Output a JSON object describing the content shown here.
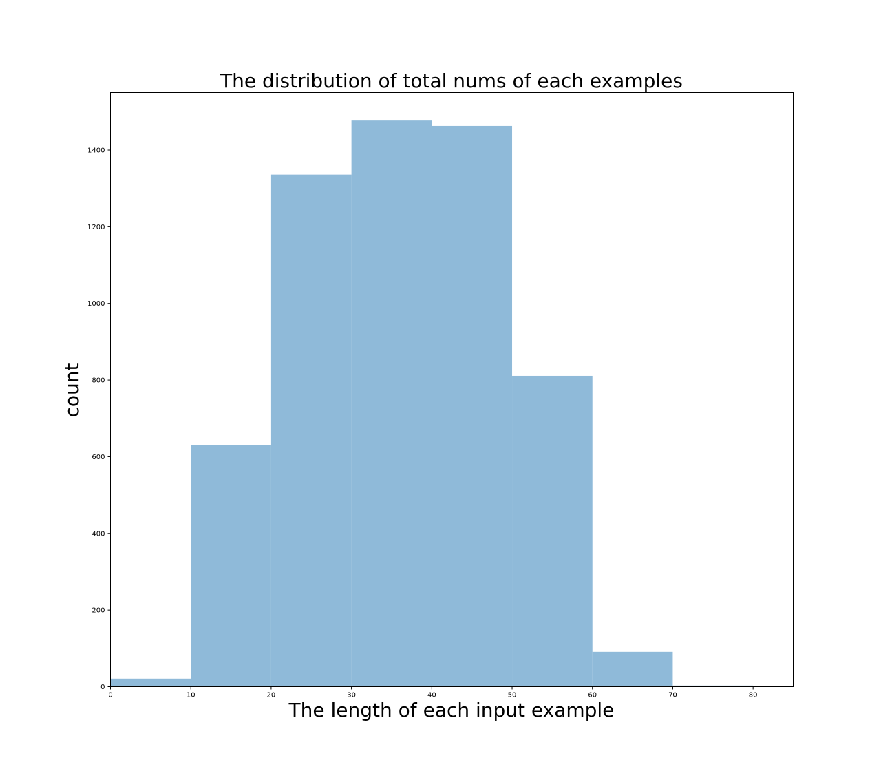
{
  "chart_data": {
    "type": "bar",
    "subtype": "histogram",
    "title": "The distribution of total nums of each examples",
    "xlabel": "The length of each input example",
    "ylabel": "count",
    "bins": [
      {
        "x0": 0,
        "x1": 10,
        "value": 21
      },
      {
        "x0": 10,
        "x1": 20,
        "value": 631
      },
      {
        "x0": 20,
        "x1": 30,
        "value": 1336
      },
      {
        "x0": 30,
        "x1": 40,
        "value": 1477
      },
      {
        "x0": 40,
        "x1": 50,
        "value": 1463
      },
      {
        "x0": 50,
        "x1": 60,
        "value": 811
      },
      {
        "x0": 60,
        "x1": 70,
        "value": 91
      },
      {
        "x0": 70,
        "x1": 80,
        "value": 3
      },
      {
        "x0": 80,
        "x1": 90,
        "value": 1
      }
    ],
    "xlim": [
      0,
      85
    ],
    "ylim": [
      0,
      1550
    ],
    "xticks": [
      0,
      10,
      20,
      30,
      40,
      50,
      60,
      70,
      80
    ],
    "yticks": [
      0,
      200,
      400,
      600,
      800,
      1000,
      1200,
      1400
    ],
    "bar_color": "#8fbad9",
    "grid": false
  }
}
